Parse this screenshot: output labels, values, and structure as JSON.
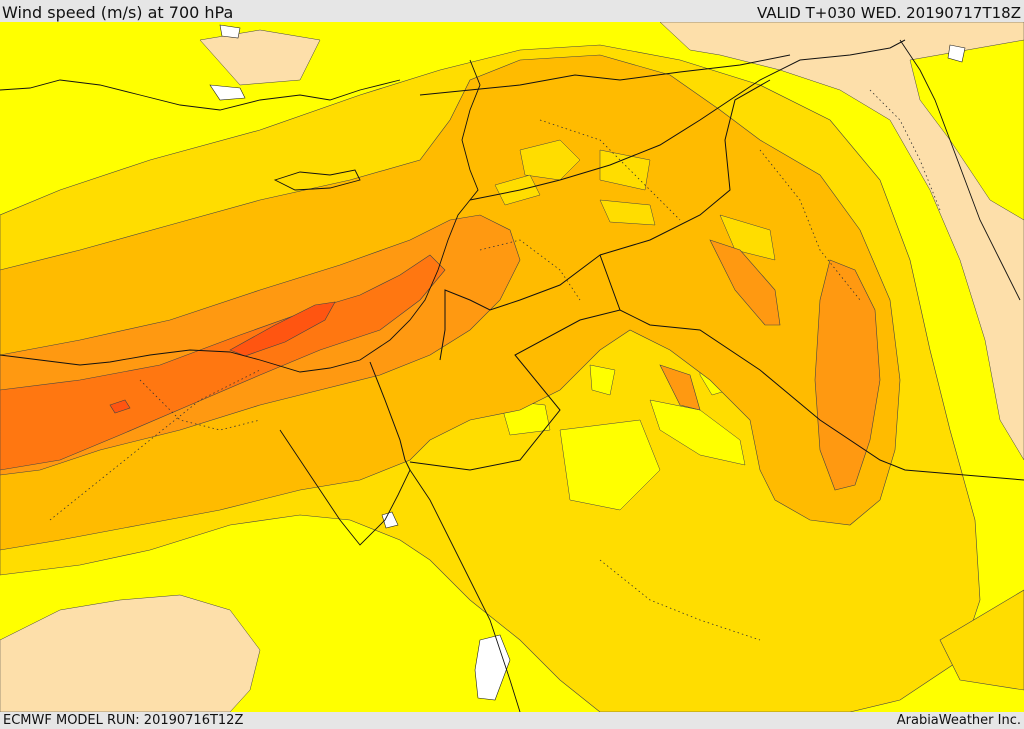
{
  "header": {
    "title": "Wind speed (m/s) at 700 hPa",
    "valid": "VALID T+030 WED. 20190717T18Z"
  },
  "footer": {
    "model_run": "ECMWF MODEL RUN: 20190716T12Z",
    "credit": "ArabiaWeather Inc."
  },
  "map": {
    "field": "wind-speed",
    "fill_colors": {
      "very-light": "#fddfaa",
      "light": "#ffff00",
      "low": "#ffdd00",
      "medium": "#ffbb00",
      "high": "#ff9911",
      "very-high": "#ff7711",
      "max": "#ff5511",
      "water": "#ffffff"
    },
    "line_color": "#222222"
  }
}
